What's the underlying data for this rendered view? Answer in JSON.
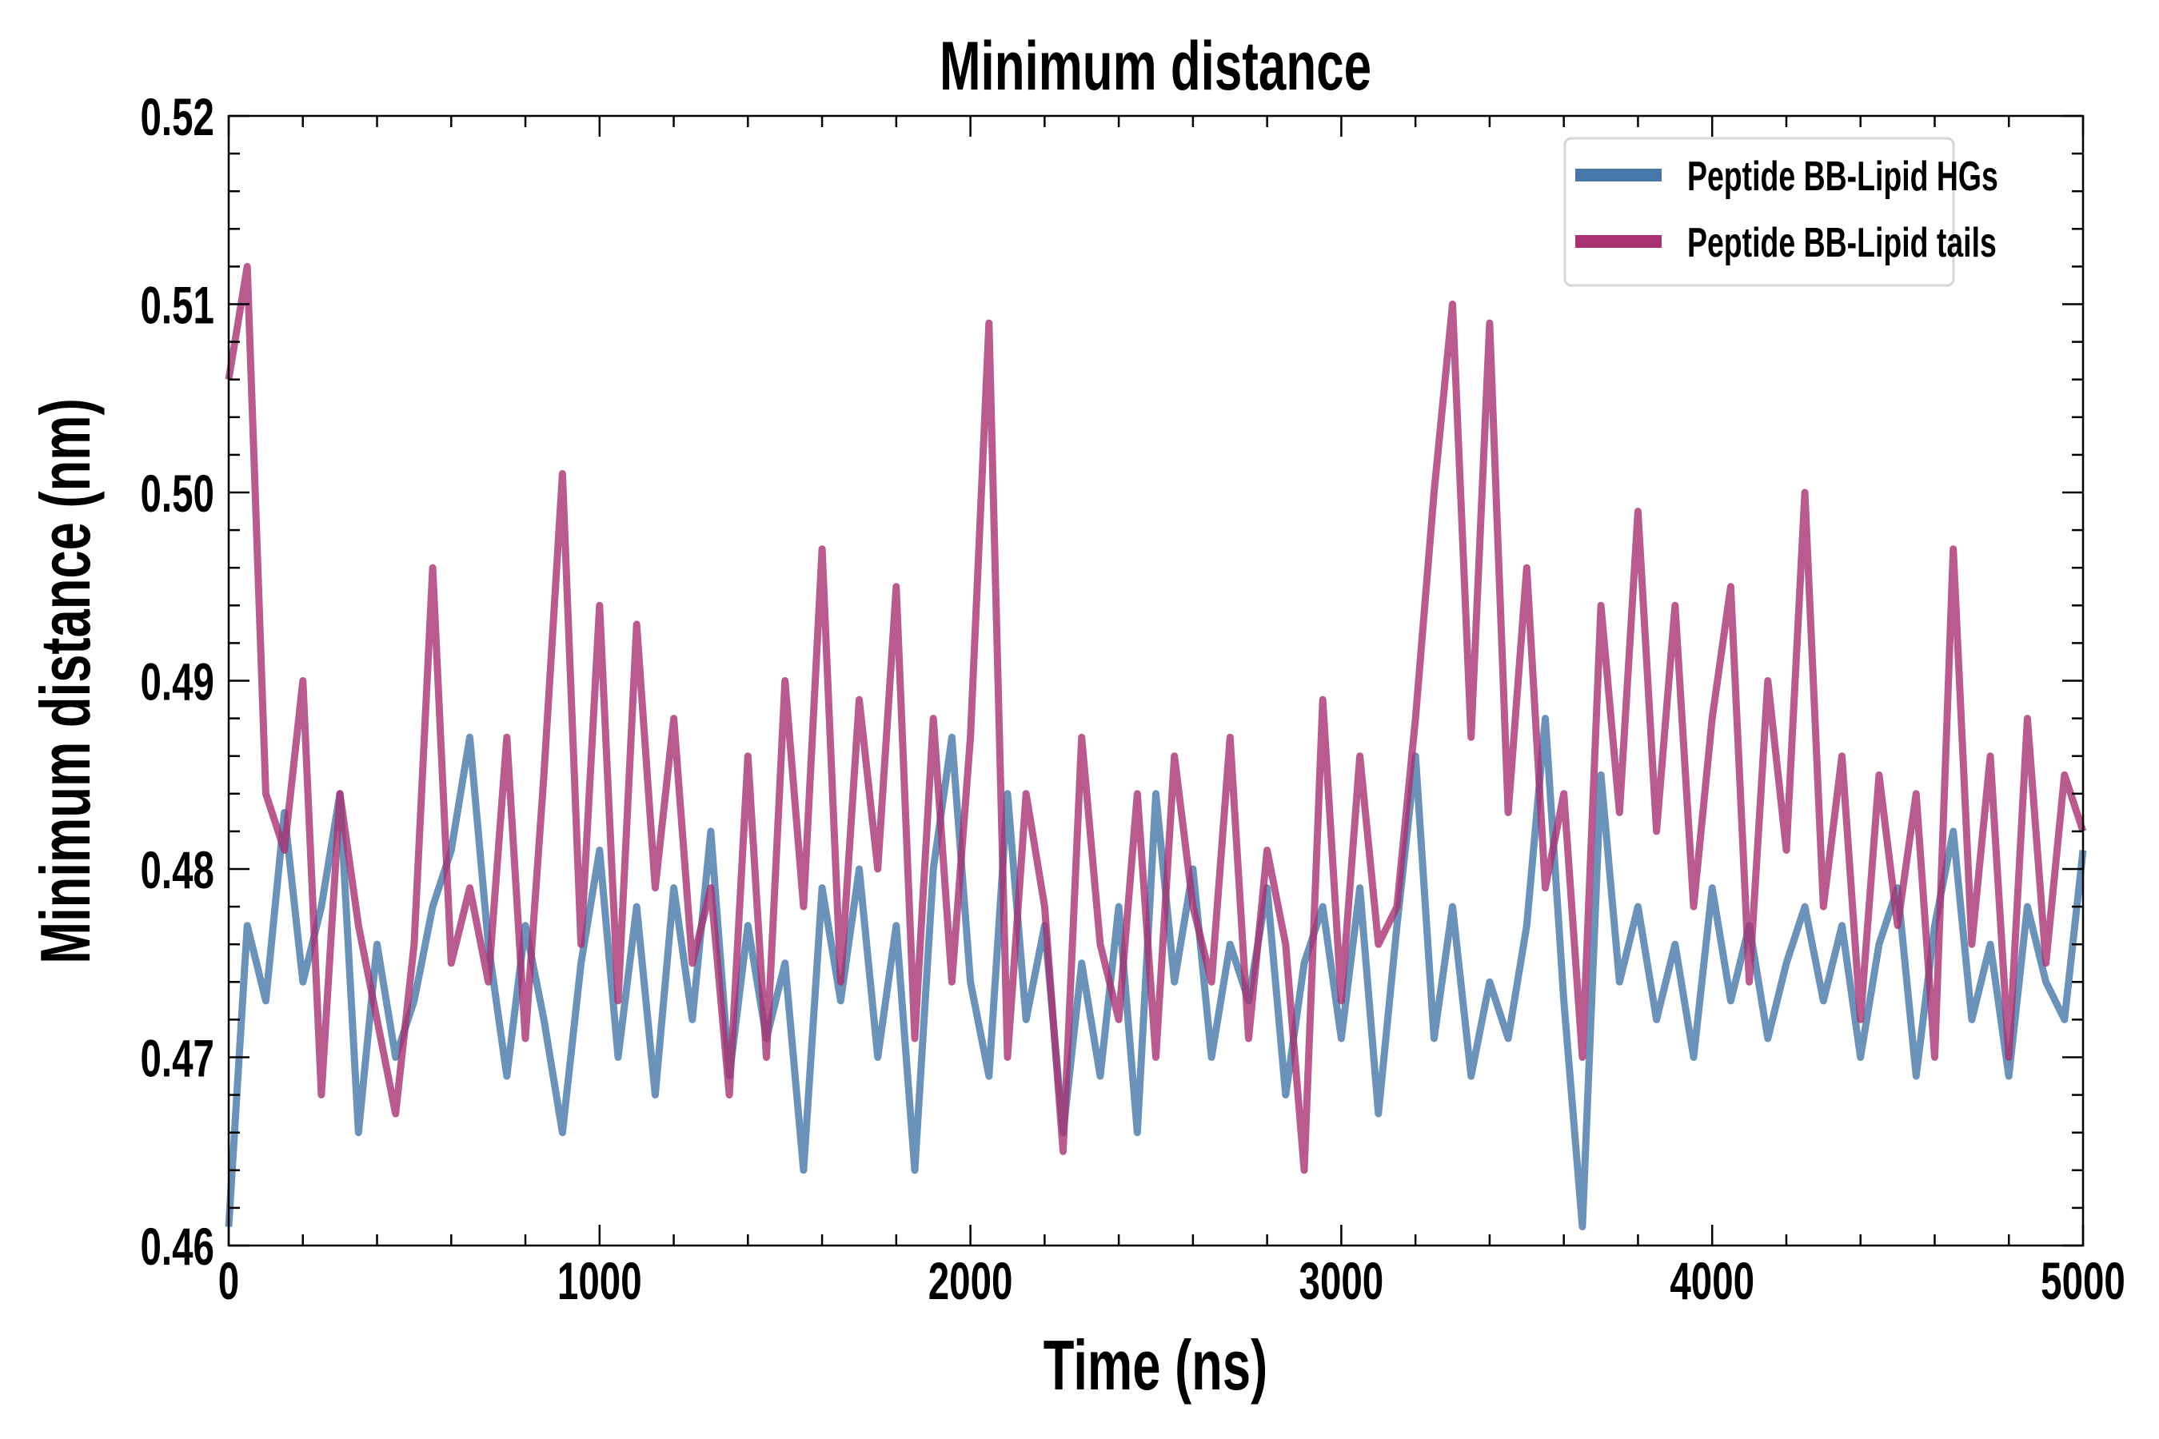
{
  "chart_data": {
    "type": "line",
    "title": "Minimum distance",
    "xlabel": "Time (ns)",
    "ylabel": "Minimum distance (nm)",
    "xlim": [
      0,
      5000
    ],
    "ylim": [
      0.46,
      0.52
    ],
    "x_ticks": [
      "0",
      "1000",
      "2000",
      "3000",
      "4000",
      "5000"
    ],
    "y_ticks": [
      "0.46",
      "0.47",
      "0.48",
      "0.49",
      "0.50",
      "0.51",
      "0.52"
    ],
    "grid": false,
    "legend_position": "top-right",
    "x_start": 0,
    "x_step": 50,
    "series": [
      {
        "name": "Peptide BB-Lipid HGs",
        "color": "#4677a8",
        "values": [
          0.461,
          0.477,
          0.473,
          0.483,
          0.474,
          0.478,
          0.484,
          0.466,
          0.476,
          0.47,
          0.473,
          0.478,
          0.481,
          0.487,
          0.476,
          0.469,
          0.477,
          0.472,
          0.466,
          0.475,
          0.481,
          0.47,
          0.478,
          0.468,
          0.479,
          0.472,
          0.482,
          0.469,
          0.477,
          0.471,
          0.475,
          0.464,
          0.479,
          0.473,
          0.48,
          0.47,
          0.477,
          0.464,
          0.48,
          0.487,
          0.474,
          0.469,
          0.484,
          0.472,
          0.477,
          0.466,
          0.475,
          0.469,
          0.478,
          0.466,
          0.484,
          0.474,
          0.48,
          0.47,
          0.476,
          0.473,
          0.479,
          0.468,
          0.475,
          0.478,
          0.471,
          0.479,
          0.467,
          0.477,
          0.486,
          0.471,
          0.478,
          0.469,
          0.474,
          0.471,
          0.477,
          0.488,
          0.473,
          0.461,
          0.485,
          0.474,
          0.478,
          0.472,
          0.476,
          0.47,
          0.479,
          0.473,
          0.477,
          0.471,
          0.475,
          0.478,
          0.473,
          0.477,
          0.47,
          0.476,
          0.479,
          0.469,
          0.477,
          0.482,
          0.472,
          0.476,
          0.469,
          0.478,
          0.474,
          0.472,
          0.481
        ]
      },
      {
        "name": "Peptide BB-Lipid tails",
        "color": "#a83272",
        "values": [
          0.506,
          0.512,
          0.484,
          0.481,
          0.49,
          0.468,
          0.484,
          0.477,
          0.472,
          0.467,
          0.476,
          0.496,
          0.475,
          0.479,
          0.474,
          0.487,
          0.471,
          0.485,
          0.501,
          0.476,
          0.494,
          0.473,
          0.493,
          0.479,
          0.488,
          0.475,
          0.479,
          0.468,
          0.486,
          0.47,
          0.49,
          0.478,
          0.497,
          0.474,
          0.489,
          0.48,
          0.495,
          0.471,
          0.488,
          0.474,
          0.487,
          0.509,
          0.47,
          0.484,
          0.478,
          0.465,
          0.487,
          0.476,
          0.472,
          0.484,
          0.47,
          0.486,
          0.478,
          0.474,
          0.487,
          0.471,
          0.481,
          0.476,
          0.464,
          0.489,
          0.473,
          0.486,
          0.476,
          0.478,
          0.488,
          0.5,
          0.51,
          0.487,
          0.509,
          0.483,
          0.496,
          0.479,
          0.484,
          0.47,
          0.494,
          0.483,
          0.499,
          0.482,
          0.494,
          0.478,
          0.488,
          0.495,
          0.474,
          0.49,
          0.481,
          0.5,
          0.478,
          0.486,
          0.472,
          0.485,
          0.477,
          0.484,
          0.47,
          0.497,
          0.476,
          0.486,
          0.47,
          0.488,
          0.475,
          0.485,
          0.482
        ]
      }
    ]
  }
}
